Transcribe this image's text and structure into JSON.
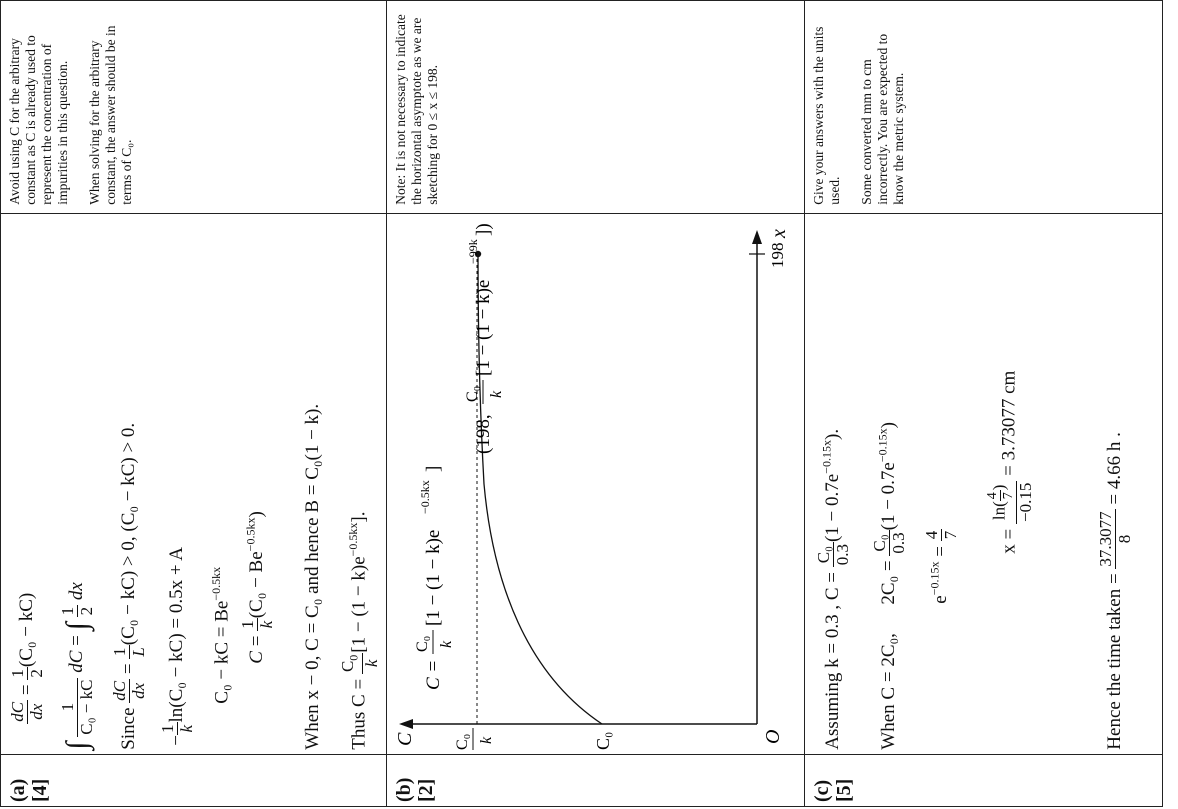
{
  "parts": [
    {
      "label": "(a)",
      "marks": "[4]",
      "lines": {
        "de": "(C₀ − kC)",
        "sep_dC": "dC",
        "sep_denom": "C₀ − kC",
        "sep_dx": "dx",
        "since_text": "Since",
        "since_rest": "(C₀ − kC) > 0,  (C₀ − kC) > 0.",
        "ln_line_rest": "ln(C₀ − kC) = 0.5x + A",
        "exp_line": "C₀ − kC = Be",
        "exp_power": "−0.5kx",
        "c_line_rest": "(C₀ − Be",
        "c_line_power": "−0.5kx",
        "when_line": "When x − 0, C = C₀ and hence B = C₀(1 − k).",
        "thus_text": "Thus C =",
        "thus_rest": "[1 − (1 − k)e",
        "thus_power": "−0.5kx",
        "thus_end": "]."
      },
      "notes": [
        "Avoid using C for the arbitrary constant as C is already used to represent the concentration of impurities in this question.",
        "When solving for the arbitrary constant, the answer should be in terms of  C₀."
      ]
    },
    {
      "label": "(b)",
      "marks": "[2]",
      "graph": {
        "y_axis_label": "C",
        "x_axis_label": "x",
        "origin_label": "O",
        "y_intercept_label": "C₀",
        "asymptote_num": "C₀",
        "asymptote_den": "k",
        "x_end_label": "198",
        "curve_eq_lhs": "C =",
        "curve_eq_num": "C₀",
        "curve_eq_den": "k",
        "curve_eq_rest": "[1 − (1 − k)e",
        "curve_eq_power": "−0.5kx",
        "curve_eq_end": "]",
        "endpoint_pre": "(198,",
        "endpoint_num": "C₀",
        "endpoint_den": "k",
        "endpoint_rest": "[1 − (1 − k)e",
        "endpoint_power": "−99k",
        "endpoint_end": "])"
      },
      "notes": [
        "Note: It is not necessary to indicate the horizontal asymptote as we are sketching for 0 ≤ x ≤ 198."
      ]
    },
    {
      "label": "(c)",
      "marks": "[5]",
      "lines": {
        "assume_text": "Assuming k = 0.3 ,   C =",
        "assume_num": "C₀",
        "assume_den": "0.3",
        "assume_rest": "(1 − 0.7e",
        "assume_power": "−0.15x",
        "assume_end": ").",
        "when_text": "When C = 2C₀,",
        "when_lhs": "2C₀ =",
        "when_num": "C₀",
        "when_den": "0.3",
        "when_rest": "(1 − 0.7e",
        "when_power": "−0.15x",
        "when_end": ")",
        "exp_lhs": "e",
        "exp_power": "−0.15x",
        "exp_eq": "=",
        "exp_num": "4",
        "exp_den": "7",
        "x_lhs": "x =",
        "x_num_pre": "ln(",
        "x_num_frac_n": "4",
        "x_num_frac_d": "7",
        "x_num_post": ")",
        "x_den": "−0.15",
        "x_result": "= 3.73077 cm",
        "time_text": "Hence the time taken =",
        "time_num": "37.3077",
        "time_den": "8",
        "time_result": "= 4.66 h ."
      },
      "notes": [
        "Give your answers with the units used.",
        "Some converted mm to cm incorrectly. You are expected to know the metric system."
      ]
    }
  ]
}
